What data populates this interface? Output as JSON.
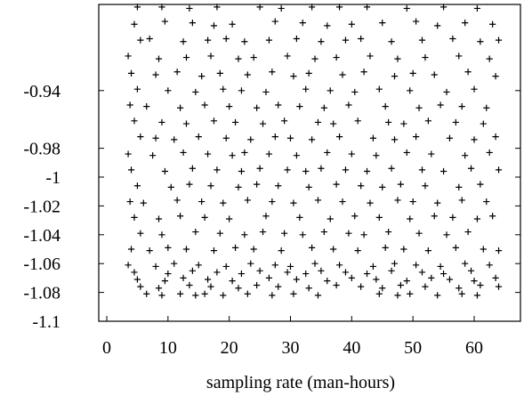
{
  "chart_data": {
    "type": "scatter",
    "title": "",
    "xlabel": "sampling rate (man-hours)",
    "ylabel": "",
    "marker": "+",
    "grid": false,
    "legend": "none",
    "x_ticks": [
      0,
      10,
      20,
      30,
      40,
      50,
      60
    ],
    "y_ticks": [
      -0.94,
      -0.98,
      -1,
      -1.02,
      -1.04,
      -1.06,
      -1.08,
      -1.1
    ],
    "y_tick_labels": [
      "-0.94",
      "-0.98",
      "-1",
      "-1.02",
      "-1.04",
      "-1.06",
      "-1.08",
      "-1.1"
    ],
    "x_tick_labels": [
      "0",
      "10",
      "20",
      "30",
      "40",
      "50",
      "60"
    ],
    "xlim": [
      0,
      64.5
    ],
    "ylim": [
      -1.1,
      -0.88
    ],
    "series": [
      {
        "x": [
          5.0,
          9.0,
          13.5,
          18.0,
          25.0,
          28.5,
          33.5,
          38.0,
          42.5,
          49.0,
          55.0,
          60.5,
          4.5,
          9.5,
          14.0,
          17.5,
          20.5,
          27.5,
          32.0,
          36.0,
          40.0,
          45.0,
          50.5,
          54.0,
          58.5,
          63.0,
          5.5,
          7.0,
          12.5,
          16.5,
          19.5,
          22.5,
          26.5,
          31.0,
          35.0,
          39.0,
          41.5,
          46.5,
          51.5,
          56.5,
          61.0,
          64.0,
          3.5,
          8.5,
          13.0,
          17.0,
          21.5,
          24.0,
          29.5,
          34.0,
          37.5,
          43.0,
          47.5,
          52.0,
          57.5,
          62.5,
          4.0,
          8.0,
          11.5,
          15.5,
          18.5,
          23.0,
          27.0,
          30.5,
          33.0,
          38.5,
          42.0,
          47.0,
          50.0,
          53.5,
          59.0,
          63.5,
          5.0,
          10.0,
          14.5,
          19.0,
          22.0,
          26.0,
          32.5,
          36.5,
          40.5,
          44.5,
          49.5,
          55.5,
          60.0,
          3.8,
          6.5,
          12.0,
          16.0,
          20.0,
          24.5,
          28.0,
          31.5,
          35.5,
          39.5,
          45.5,
          51.0,
          54.5,
          58.0,
          62.0,
          4.5,
          9.0,
          13.0,
          17.5,
          21.0,
          25.5,
          29.0,
          34.5,
          37.0,
          41.0,
          46.0,
          48.5,
          52.5,
          57.0,
          61.5,
          5.5,
          8.0,
          11.0,
          15.0,
          19.5,
          23.5,
          27.5,
          30.0,
          33.5,
          38.0,
          43.5,
          47.0,
          50.5,
          56.0,
          60.0,
          63.5,
          3.5,
          7.5,
          12.5,
          16.5,
          20.5,
          22.5,
          26.5,
          31.0,
          36.0,
          40.0,
          44.0,
          49.0,
          53.0,
          58.5,
          62.5,
          4.0,
          9.5,
          14.0,
          18.0,
          22.0,
          25.0,
          29.5,
          32.5,
          35.0,
          39.0,
          42.5,
          46.5,
          51.5,
          55.0,
          59.5,
          64.0,
          5.0,
          10.5,
          13.5,
          17.0,
          21.5,
          24.5,
          28.0,
          33.0,
          37.5,
          41.5,
          45.0,
          48.0,
          52.0,
          57.5,
          61.0,
          3.8,
          6.0,
          11.5,
          15.5,
          19.0,
          23.0,
          27.0,
          30.5,
          34.5,
          38.5,
          43.0,
          47.5,
          50.0,
          54.0,
          58.0,
          62.0,
          4.5,
          8.5,
          12.0,
          16.0,
          20.0,
          26.0,
          31.5,
          36.5,
          40.5,
          44.5,
          49.5,
          53.5,
          56.5,
          60.5,
          63.0,
          5.5,
          9.0,
          14.5,
          18.5,
          22.5,
          25.5,
          29.0,
          32.0,
          35.5,
          39.5,
          42.0,
          46.0,
          51.0,
          55.5,
          59.0,
          4.0,
          7.0,
          10.0,
          13.0,
          17.5,
          21.0,
          24.0,
          28.5,
          33.5,
          37.0,
          41.0,
          45.5,
          48.5,
          52.5,
          57.0,
          61.5,
          64.0,
          3.5,
          8.0,
          11.0,
          15.0,
          19.5,
          23.5,
          27.5,
          30.0,
          34.0,
          38.0,
          43.5,
          47.0,
          50.5,
          54.5,
          58.5,
          62.5,
          5.0,
          9.5,
          12.5,
          16.5,
          20.5,
          26.5,
          31.0,
          36.0,
          40.0,
          44.0,
          49.0,
          53.0,
          56.0,
          60.0,
          63.5,
          4.5,
          10.0,
          14.0,
          18.0,
          22.0,
          25.0,
          29.5,
          32.5,
          35.0,
          39.0,
          42.5,
          46.5,
          51.5,
          55.0,
          59.5,
          5.5,
          8.5,
          13.5,
          17.0,
          21.5,
          24.5,
          28.0,
          33.0,
          37.5,
          41.5,
          45.0,
          48.0,
          52.0,
          57.5,
          61.0,
          64.0,
          6.5,
          9.0,
          12.0,
          14.5,
          16.0,
          19.0,
          23.0,
          27.0,
          30.5,
          34.5,
          44.5,
          47.5,
          49.5,
          54.0,
          58.0,
          60.5
        ],
        "y": [
          -0.882,
          -0.882,
          -0.883,
          -0.882,
          -0.882,
          -0.883,
          -0.882,
          -0.882,
          -0.882,
          -0.883,
          -0.882,
          -0.883,
          -0.894,
          -0.892,
          -0.893,
          -0.895,
          -0.894,
          -0.892,
          -0.893,
          -0.895,
          -0.894,
          -0.893,
          -0.892,
          -0.895,
          -0.893,
          -0.894,
          -0.905,
          -0.904,
          -0.906,
          -0.905,
          -0.904,
          -0.906,
          -0.905,
          -0.904,
          -0.906,
          -0.905,
          -0.904,
          -0.906,
          -0.905,
          -0.904,
          -0.906,
          -0.905,
          -0.916,
          -0.918,
          -0.917,
          -0.916,
          -0.918,
          -0.917,
          -0.916,
          -0.918,
          -0.917,
          -0.916,
          -0.918,
          -0.917,
          -0.916,
          -0.918,
          -0.928,
          -0.929,
          -0.927,
          -0.93,
          -0.928,
          -0.929,
          -0.927,
          -0.93,
          -0.928,
          -0.929,
          -0.927,
          -0.93,
          -0.928,
          -0.929,
          -0.927,
          -0.93,
          -0.939,
          -0.94,
          -0.941,
          -0.939,
          -0.94,
          -0.941,
          -0.939,
          -0.94,
          -0.941,
          -0.939,
          -0.94,
          -0.941,
          -0.939,
          -0.95,
          -0.951,
          -0.952,
          -0.95,
          -0.951,
          -0.952,
          -0.95,
          -0.951,
          -0.952,
          -0.95,
          -0.951,
          -0.952,
          -0.95,
          -0.951,
          -0.952,
          -0.961,
          -0.962,
          -0.963,
          -0.961,
          -0.962,
          -0.963,
          -0.961,
          -0.962,
          -0.963,
          -0.961,
          -0.962,
          -0.963,
          -0.961,
          -0.962,
          -0.963,
          -0.972,
          -0.973,
          -0.974,
          -0.972,
          -0.973,
          -0.974,
          -0.972,
          -0.973,
          -0.974,
          -0.972,
          -0.973,
          -0.974,
          -0.972,
          -0.973,
          -0.974,
          -0.972,
          -0.984,
          -0.985,
          -0.983,
          -0.984,
          -0.985,
          -0.983,
          -0.984,
          -0.985,
          -0.983,
          -0.984,
          -0.985,
          -0.983,
          -0.984,
          -0.985,
          -0.983,
          -0.995,
          -0.996,
          -0.994,
          -0.995,
          -0.996,
          -0.994,
          -0.995,
          -0.996,
          -0.994,
          -0.995,
          -0.996,
          -0.994,
          -0.995,
          -0.996,
          -0.994,
          -0.995,
          -1.006,
          -1.007,
          -1.005,
          -1.006,
          -1.007,
          -1.005,
          -1.006,
          -1.007,
          -1.005,
          -1.006,
          -1.007,
          -1.005,
          -1.006,
          -1.007,
          -1.005,
          -1.017,
          -1.018,
          -1.016,
          -1.017,
          -1.018,
          -1.016,
          -1.017,
          -1.018,
          -1.016,
          -1.017,
          -1.018,
          -1.016,
          -1.017,
          -1.018,
          -1.016,
          -1.017,
          -1.028,
          -1.029,
          -1.027,
          -1.028,
          -1.029,
          -1.027,
          -1.028,
          -1.029,
          -1.027,
          -1.028,
          -1.029,
          -1.027,
          -1.028,
          -1.029,
          -1.027,
          -1.039,
          -1.04,
          -1.038,
          -1.039,
          -1.04,
          -1.038,
          -1.039,
          -1.04,
          -1.038,
          -1.039,
          -1.04,
          -1.038,
          -1.039,
          -1.04,
          -1.038,
          -1.05,
          -1.051,
          -1.049,
          -1.05,
          -1.051,
          -1.049,
          -1.05,
          -1.051,
          -1.049,
          -1.05,
          -1.051,
          -1.049,
          -1.05,
          -1.051,
          -1.049,
          -1.05,
          -1.051,
          -1.061,
          -1.062,
          -1.06,
          -1.061,
          -1.062,
          -1.06,
          -1.061,
          -1.062,
          -1.06,
          -1.061,
          -1.062,
          -1.06,
          -1.061,
          -1.062,
          -1.06,
          -1.061,
          -1.071,
          -1.072,
          -1.07,
          -1.071,
          -1.072,
          -1.07,
          -1.071,
          -1.072,
          -1.07,
          -1.071,
          -1.072,
          -1.07,
          -1.071,
          -1.072,
          -1.07,
          -1.066,
          -1.067,
          -1.065,
          -1.066,
          -1.067,
          -1.065,
          -1.066,
          -1.067,
          -1.065,
          -1.066,
          -1.067,
          -1.065,
          -1.066,
          -1.067,
          -1.065,
          -1.076,
          -1.077,
          -1.075,
          -1.076,
          -1.077,
          -1.075,
          -1.076,
          -1.077,
          -1.075,
          -1.076,
          -1.077,
          -1.075,
          -1.076,
          -1.077,
          -1.075,
          -1.076,
          -1.081,
          -1.082,
          -1.081,
          -1.082,
          -1.081,
          -1.082,
          -1.081,
          -1.082,
          -1.081,
          -1.082,
          -1.081,
          -1.082,
          -1.081,
          -1.082,
          -1.081,
          -1.082
        ]
      }
    ]
  }
}
